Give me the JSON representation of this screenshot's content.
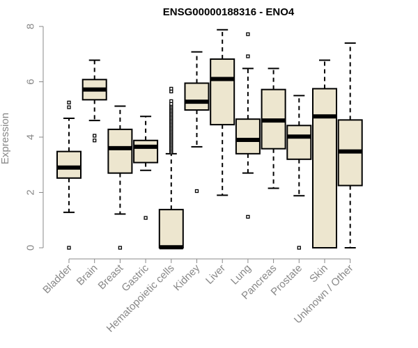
{
  "chart_data": {
    "type": "boxplot",
    "title": "ENSG00000188316 - ENO4",
    "xlabel": "",
    "ylabel": "Expression",
    "ylim": [
      0,
      8
    ],
    "yticks": [
      0,
      2,
      4,
      6,
      8
    ],
    "box_fill": "#ede6cf",
    "categories": [
      "Bladder",
      "Brain",
      "Breast",
      "Gastric",
      "Hematopoietic cells",
      "Kidney",
      "Liver",
      "Lung",
      "Pancreas",
      "Prostate",
      "Skin",
      "Unknown / Other"
    ],
    "boxes": [
      {
        "category": "Bladder",
        "whisker_low": 1.28,
        "q1": 2.52,
        "median": 2.9,
        "q3": 3.48,
        "whisker_high": 4.68,
        "outliers": [
          0,
          5.08,
          5.25
        ]
      },
      {
        "category": "Brain",
        "whisker_low": 4.6,
        "q1": 5.35,
        "median": 5.72,
        "q3": 6.08,
        "whisker_high": 6.78,
        "outliers": [
          3.88,
          4.05
        ]
      },
      {
        "category": "Breast",
        "whisker_low": 1.22,
        "q1": 2.7,
        "median": 3.6,
        "q3": 4.28,
        "whisker_high": 5.12,
        "outliers": [
          0
        ]
      },
      {
        "category": "Gastric",
        "whisker_low": 2.8,
        "q1": 3.08,
        "median": 3.65,
        "q3": 3.88,
        "whisker_high": 4.75,
        "outliers": [
          1.08
        ]
      },
      {
        "category": "Hematopoietic cells",
        "whisker_low": 0,
        "q1": 0,
        "median": 0.02,
        "q3": 1.38,
        "whisker_high": 3.4,
        "outliers": [
          3.45,
          3.5,
          3.55,
          3.6,
          3.65,
          3.7,
          3.75,
          3.8,
          3.85,
          3.9,
          3.95,
          4.0,
          4.05,
          4.1,
          4.15,
          4.2,
          4.25,
          4.3,
          4.35,
          4.4,
          4.45,
          4.5,
          4.55,
          4.6,
          4.65,
          4.7,
          4.75,
          4.8,
          4.85,
          4.9,
          4.95,
          5.0,
          5.05,
          5.1,
          5.15,
          5.2,
          5.3,
          5.65,
          5.75
        ]
      },
      {
        "category": "Kidney",
        "whisker_low": 3.65,
        "q1": 4.98,
        "median": 5.28,
        "q3": 5.95,
        "whisker_high": 7.08,
        "outliers": [
          2.05
        ]
      },
      {
        "category": "Liver",
        "whisker_low": 1.9,
        "q1": 4.45,
        "median": 6.1,
        "q3": 6.82,
        "whisker_high": 7.88,
        "outliers": []
      },
      {
        "category": "Lung",
        "whisker_low": 2.7,
        "q1": 3.4,
        "median": 3.9,
        "q3": 4.65,
        "whisker_high": 6.48,
        "outliers": [
          1.12,
          6.92,
          7.72
        ]
      },
      {
        "category": "Pancreas",
        "whisker_low": 2.15,
        "q1": 3.58,
        "median": 4.6,
        "q3": 5.72,
        "whisker_high": 6.48,
        "outliers": []
      },
      {
        "category": "Prostate",
        "whisker_low": 1.88,
        "q1": 3.2,
        "median": 4.02,
        "q3": 4.42,
        "whisker_high": 5.5,
        "outliers": [
          0
        ]
      },
      {
        "category": "Skin",
        "whisker_low": 0,
        "q1": 0,
        "median": 4.75,
        "q3": 5.75,
        "whisker_high": 6.78,
        "outliers": []
      },
      {
        "category": "Unknown / Other",
        "whisker_low": 0,
        "q1": 2.25,
        "median": 3.48,
        "q3": 4.62,
        "whisker_high": 7.4,
        "outliers": []
      }
    ]
  }
}
